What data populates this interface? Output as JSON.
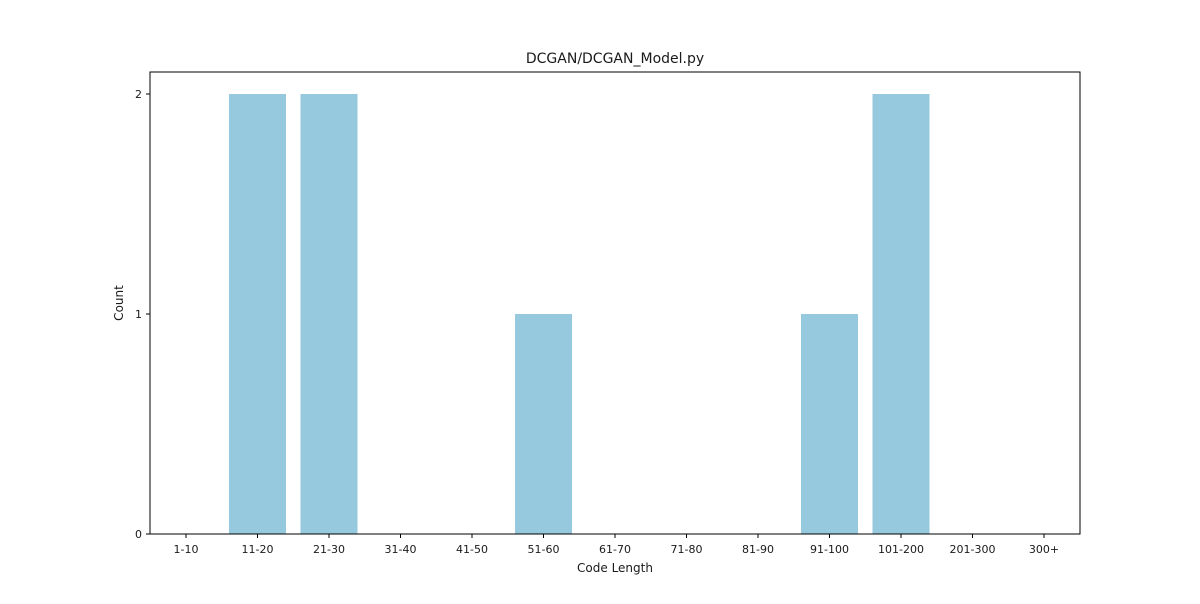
{
  "chart_data": {
    "type": "bar",
    "title": "DCGAN/DCGAN_Model.py",
    "xlabel": "Code Length",
    "ylabel": "Count",
    "categories": [
      "1-10",
      "11-20",
      "21-30",
      "31-40",
      "41-50",
      "51-60",
      "61-70",
      "71-80",
      "81-90",
      "91-100",
      "101-200",
      "201-300",
      "300+"
    ],
    "values": [
      0,
      2,
      2,
      0,
      0,
      1,
      0,
      0,
      0,
      1,
      2,
      0,
      0
    ],
    "ylim": [
      0,
      2.1
    ],
    "yticks": [
      0,
      1,
      2
    ],
    "grid": false,
    "bar_color": "#96c9dd"
  }
}
